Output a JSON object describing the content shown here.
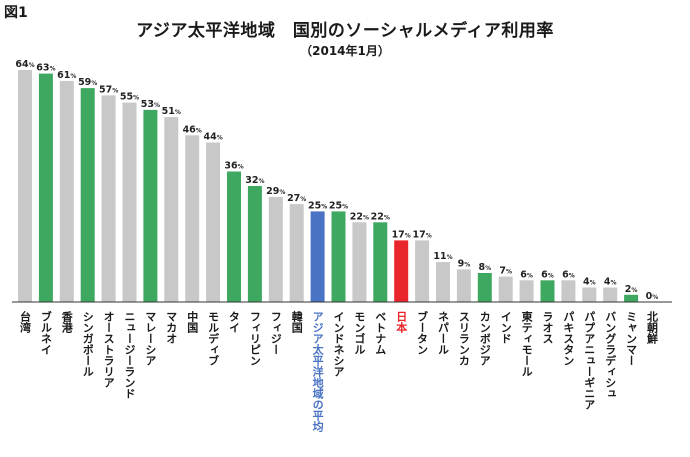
{
  "figure_label": "図1",
  "chart_data": {
    "type": "bar",
    "title": "アジア太平洋地域　国別のソーシャルメディア利用率",
    "subtitle": "（2014年1月）",
    "unit": "%",
    "categories": [
      "台湾",
      "ブルネイ",
      "香港",
      "シンガポール",
      "オーストラリア",
      "ニュージーランド",
      "マレーシア",
      "マカオ",
      "中国",
      "モルディブ",
      "タイ",
      "フィリピン",
      "フィジー",
      "韓国",
      "アジア太平洋地域の平均",
      "インドネシア",
      "モンゴル",
      "ベトナム",
      "日本",
      "ブータン",
      "ネパール",
      "スリランカ",
      "カンボジア",
      "インド",
      "東ティモール",
      "ラオス",
      "パキスタン",
      "パプアニューギニア",
      "バングラディシュ",
      "ミャンマー",
      "北朝鮮"
    ],
    "values": [
      64,
      63,
      61,
      59,
      57,
      55,
      53,
      51,
      46,
      44,
      36,
      32,
      29,
      27,
      25,
      25,
      22,
      22,
      17,
      17,
      11,
      9,
      8,
      7,
      6,
      6,
      6,
      4,
      4,
      2,
      0
    ],
    "bar_kinds": [
      "gray",
      "green",
      "gray",
      "green",
      "gray",
      "gray",
      "green",
      "gray",
      "gray",
      "gray",
      "green",
      "green",
      "gray",
      "gray",
      "blue",
      "green",
      "gray",
      "green",
      "red",
      "gray",
      "gray",
      "gray",
      "green",
      "gray",
      "gray",
      "green",
      "gray",
      "gray",
      "gray",
      "green",
      "gray"
    ],
    "colors": {
      "gray": "#c8c8c8",
      "green": "#3fa860",
      "blue": "#4a73c4",
      "red": "#e8262b",
      "axis": "#333333",
      "blue_label": "#4a73c4",
      "red_label": "#e8262b"
    },
    "ylim": [
      0,
      64
    ],
    "grid": false
  }
}
